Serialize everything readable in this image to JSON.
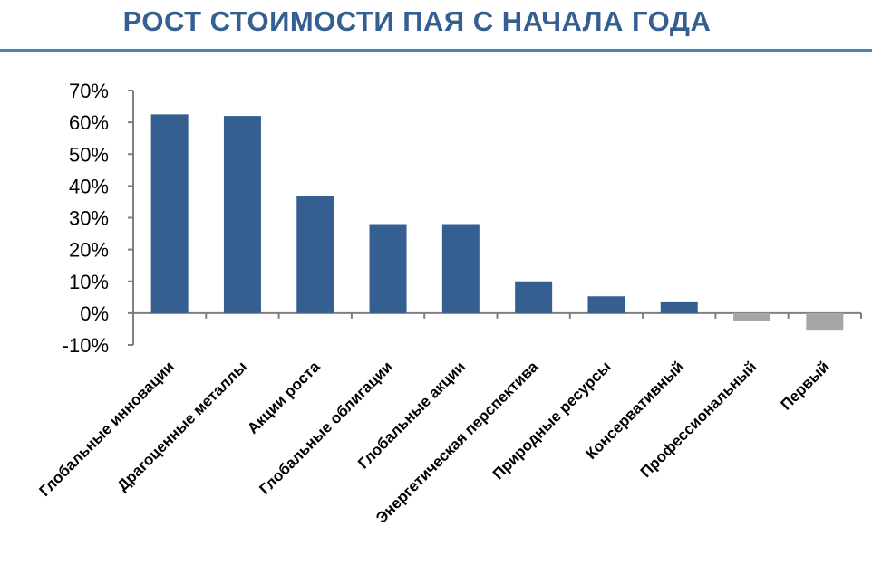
{
  "header": {
    "title": "РОСТ СТОИМОСТИ ПАЯ С НАЧАЛА ГОДА"
  },
  "colors": {
    "title": "#365f91",
    "rule": "#4f81bd",
    "positive_bar": "#365f91",
    "negative_bar": "#a6a6a6",
    "axis": "#7f7f7f",
    "text": "#000000"
  },
  "chart_data": {
    "type": "bar",
    "title": "РОСТ СТОИМОСТИ ПАЯ С НАЧАЛА ГОДА",
    "xlabel": "",
    "ylabel": "",
    "ylim": [
      -10,
      70
    ],
    "y_ticks": [
      70,
      60,
      50,
      40,
      30,
      20,
      10,
      0,
      -10
    ],
    "y_tick_labels": [
      "70%",
      "60%",
      "50%",
      "40%",
      "30%",
      "20%",
      "10%",
      "0%",
      "-10%"
    ],
    "grid": false,
    "legend": "none",
    "categories": [
      "Глобальные инновации",
      "Драгоценные  металлы",
      "Акции роста",
      "Глобальные облигации",
      "Глобальные акции",
      "Энергетическая перспектива",
      "Природные ресурсы",
      "Консервативный",
      "Профессиональный",
      "Первый"
    ],
    "values": [
      62.5,
      62,
      36.7,
      28,
      28,
      10,
      5.3,
      3.7,
      -2.5,
      -5.5
    ]
  }
}
